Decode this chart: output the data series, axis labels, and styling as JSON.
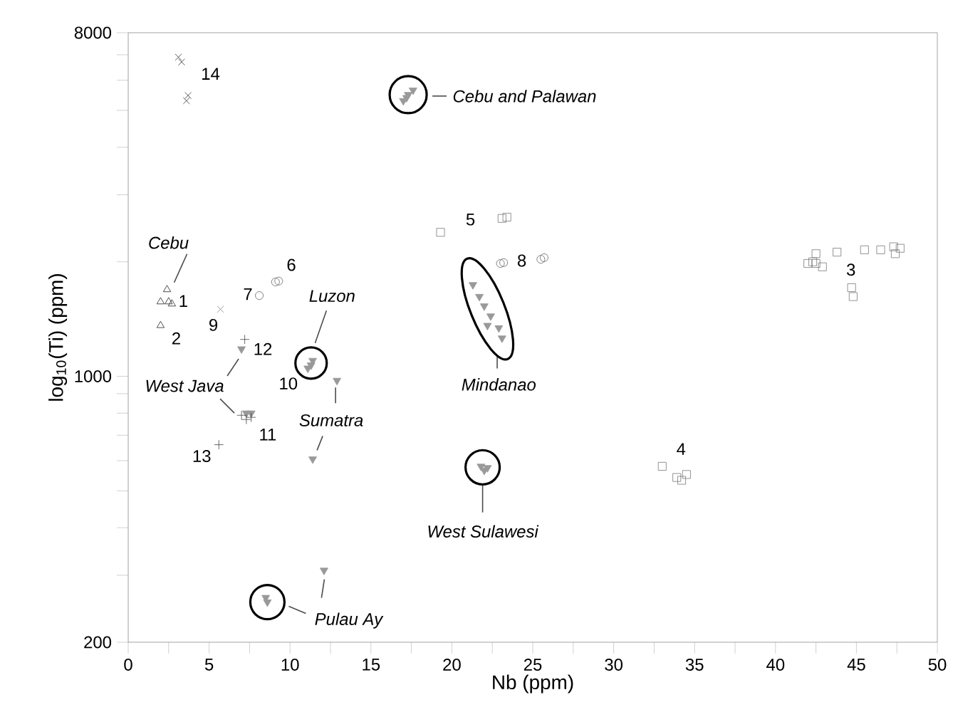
{
  "chart_data": {
    "type": "scatter",
    "xlabel": "Nb (ppm)",
    "ylabel": "log$_{10}$(Ti) (ppm)",
    "log": "y",
    "xlim": [
      0,
      50
    ],
    "ylim": [
      200,
      8000
    ],
    "xticks": [
      0,
      {
        "value": 2.5,
        "label": null
      },
      5,
      {
        "value": 7.5,
        "label": null
      },
      10,
      {
        "value": 12.5,
        "label": null
      },
      15,
      {
        "value": 17.5,
        "label": null
      },
      20,
      {
        "value": 22.5,
        "label": null
      },
      25,
      {
        "value": 27.5,
        "label": null
      },
      30,
      {
        "value": 32.5,
        "label": null
      },
      35,
      {
        "value": 37.5,
        "label": null
      },
      40,
      {
        "value": 42.5,
        "label": null
      },
      45,
      {
        "value": 47.5,
        "label": null
      },
      50
    ],
    "yticks": [
      200,
      {
        "value": 300,
        "label": null
      },
      {
        "value": 400,
        "label": null
      },
      {
        "value": 500,
        "label": null
      },
      {
        "value": 600,
        "label": null
      },
      {
        "value": 700,
        "label": null
      },
      {
        "value": 800,
        "label": null
      },
      {
        "value": 900,
        "label": null
      },
      1000,
      {
        "value": 2000,
        "label": null
      },
      {
        "value": 3000,
        "label": null
      },
      {
        "value": 4000,
        "label": null
      },
      {
        "value": 5000,
        "label": null
      },
      {
        "value": 6000,
        "label": null
      },
      {
        "value": 7000,
        "label": null
      },
      8000
    ],
    "series": [
      {
        "marker": "triangle-down",
        "color": "#999999",
        "x": [
          17.0,
          17.3,
          17.6,
          17.2,
          11.1,
          11.4,
          11.3,
          12.9,
          11.4,
          7.0,
          7.3,
          7.6,
          21.3,
          21.7,
          22.0,
          22.4,
          22.2,
          22.9,
          23.1,
          21.8,
          22.0,
          22.2,
          8.6,
          8.5,
          12.1
        ],
        "values": [
          5300,
          5500,
          5650,
          5400,
          1050,
          1100,
          1070,
          975,
          606,
          1180,
          800,
          800,
          1740,
          1620,
          1530,
          1440,
          1360,
          1340,
          1260,
          580,
          566,
          575,
          255,
          262,
          309
        ]
      },
      {
        "marker": "cross",
        "color": "#333333",
        "x": [
          3.1,
          3.3,
          3.7,
          3.6
        ],
        "values": [
          6900,
          6700,
          5470,
          5300
        ]
      },
      {
        "marker": "cross",
        "color": "#888888",
        "x": [
          5.7
        ],
        "values": [
          1500
        ]
      },
      {
        "marker": "plus",
        "color": "#444444",
        "x": [
          7.0,
          7.3,
          7.6,
          7.2,
          5.6
        ],
        "values": [
          790,
          770,
          780,
          1250,
          661
        ]
      },
      {
        "marker": "triangle",
        "color": "#222222",
        "x": [
          2.4,
          2.0,
          2.5,
          2.7,
          2.0
        ],
        "values": [
          1690,
          1570,
          1570,
          1550,
          1360
        ]
      },
      {
        "marker": "circle",
        "color": "#666666",
        "x": [
          8.1,
          9.1,
          9.3,
          23.0,
          23.2,
          25.5,
          25.7
        ],
        "values": [
          1630,
          1770,
          1780,
          1980,
          1990,
          2030,
          2050
        ]
      },
      {
        "marker": "square",
        "color": "#777777",
        "x": [
          19.3,
          23.1,
          23.4,
          42.0,
          42.3,
          42.5,
          42.9,
          42.5,
          43.8,
          44.7,
          44.8,
          45.5,
          46.5,
          47.3,
          47.7,
          47.4,
          33.0,
          33.9,
          34.5,
          34.2
        ],
        "values": [
          2390,
          2600,
          2620,
          1980,
          2000,
          1980,
          1940,
          2100,
          2120,
          1710,
          1620,
          2150,
          2150,
          2190,
          2170,
          2100,
          580,
          542,
          552,
          533
        ]
      }
    ],
    "annotations": [
      {
        "text": "14",
        "x": 3.5,
        "y": 6800
      },
      {
        "text": "Cebu and Palawan",
        "x": 17.3,
        "y": 5500
      },
      {
        "text": "Cebu",
        "x": 2.4,
        "y": 1690
      },
      {
        "text": "1",
        "x": 2.7,
        "y": 1550
      },
      {
        "text": "2",
        "x": 2.0,
        "y": 1360
      },
      {
        "text": "9",
        "x": 5.7,
        "y": 1500
      },
      {
        "text": "7",
        "x": 8.1,
        "y": 1630
      },
      {
        "text": "6",
        "x": 9.2,
        "y": 1770
      },
      "Luzon",
      {
        "text": "10",
        "x": 11.3,
        "y": 1080
      },
      {
        "text": "12",
        "x": 7.0,
        "y": 1180
      },
      {
        "text": "West Java",
        "x": 7.0,
        "y": 1180
      },
      {
        "text": "Sumatra",
        "x": 12.9,
        "y": 975
      },
      {
        "text": "11",
        "x": 7.3,
        "y": 800
      },
      {
        "text": "13",
        "x": 5.6,
        "y": 661
      },
      {
        "text": "5",
        "x": 19.3,
        "y": 2390
      },
      {
        "text": "8",
        "x": 23.0,
        "y": 1980
      },
      "Mindanao",
      {
        "text": "3",
        "x": 42.9,
        "y": 1940
      },
      {
        "text": "4",
        "x": 33.9,
        "y": 542
      },
      "West Sulawesi",
      {
        "text": "Pulau Ay",
        "x": 8.6,
        "y": 255
      }
    ]
  }
}
